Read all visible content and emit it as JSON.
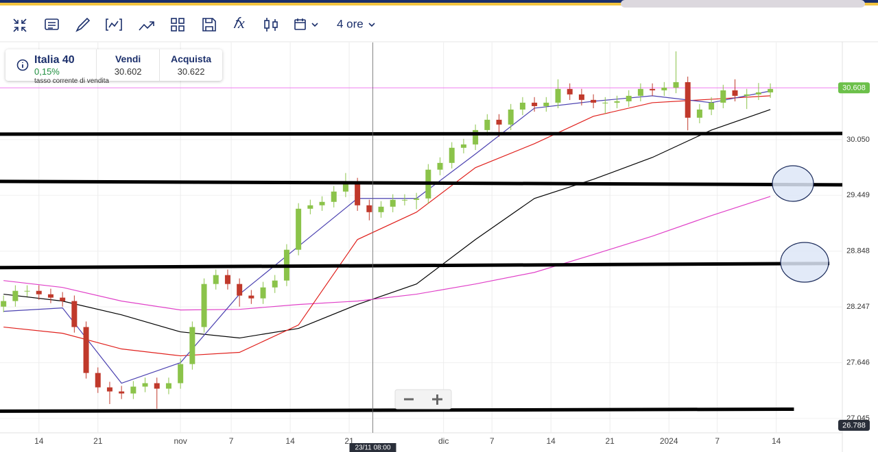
{
  "toolbar": {
    "timeframe": "4 ore"
  },
  "instrument": {
    "name": "Italia 40",
    "change": "0,15%",
    "sell_label": "Vendi",
    "sell": "30.602",
    "buy_label": "Acquista",
    "buy": "30.622",
    "tooltip": "tasso corrente di vendita"
  },
  "chart_data": {
    "type": "candlestick",
    "xlim": [
      -3.3,
      68.1
    ],
    "ylim": [
      26890,
      31097
    ],
    "xticks": [
      {
        "value": 0,
        "label": "14"
      },
      {
        "value": 5,
        "label": "21"
      },
      {
        "value": 12,
        "label": "nov"
      },
      {
        "value": 16.3,
        "label": "7"
      },
      {
        "value": 21.3,
        "label": "14"
      },
      {
        "value": 26.3,
        "label": "21"
      },
      {
        "value": 34.3,
        "label": "dic"
      },
      {
        "value": 38.4,
        "label": "7"
      },
      {
        "value": 43.4,
        "label": "14"
      },
      {
        "value": 48.4,
        "label": "21"
      },
      {
        "value": 53.4,
        "label": "2024"
      },
      {
        "value": 57.5,
        "label": "7"
      },
      {
        "value": 62.5,
        "label": "14"
      }
    ],
    "yticks": [
      {
        "value": 30050,
        "label": "30.050"
      },
      {
        "value": 29449,
        "label": "29.449"
      },
      {
        "value": 28848,
        "label": "28.848"
      },
      {
        "value": 28247,
        "label": "28.247"
      },
      {
        "value": 27646,
        "label": "27.646"
      },
      {
        "value": 27045,
        "label": "27.045"
      }
    ],
    "up_color": "#8bc34a",
    "down_color": "#c0392b",
    "x": [
      -3,
      -2,
      -1,
      0,
      1,
      2,
      3,
      4,
      5,
      6,
      7,
      8,
      9,
      10,
      11,
      12,
      13,
      14,
      15,
      16,
      17,
      18,
      19,
      20,
      21,
      22,
      23,
      24,
      25,
      26,
      27,
      28,
      29,
      30,
      31,
      32,
      33,
      34,
      35,
      36,
      37,
      38,
      39,
      40,
      41,
      42,
      43,
      44,
      45,
      46,
      47,
      48,
      49,
      50,
      51,
      52,
      53,
      54,
      55,
      56,
      57,
      58,
      59,
      60,
      61,
      62
    ],
    "opens": [
      28250,
      28310,
      28420,
      28420,
      28383,
      28347,
      28310,
      28030,
      27535,
      27380,
      27336,
      27314,
      27388,
      27425,
      27366,
      27425,
      27631,
      28030,
      28494,
      28590,
      28494,
      28369,
      28339,
      28457,
      28531,
      28863,
      29305,
      29342,
      29379,
      29490,
      29578,
      29342,
      29268,
      29327,
      29401,
      29401,
      29416,
      29726,
      29799,
      29962,
      29998,
      30153,
      30264,
      30212,
      30374,
      30448,
      30411,
      30448,
      30596,
      30537,
      30478,
      30448,
      30448,
      30463,
      30522,
      30596,
      30581,
      30610,
      30669,
      30286,
      30374,
      30448,
      30581,
      30522,
      30537,
      30559
    ],
    "highs": [
      28370,
      28480,
      28480,
      28480,
      28443,
      28407,
      28370,
      28090,
      27595,
      27440,
      27396,
      27448,
      27485,
      27485,
      27485,
      27691,
      28090,
      28554,
      28650,
      28650,
      28554,
      28429,
      28517,
      28591,
      28923,
      29365,
      29402,
      29439,
      29550,
      29690,
      29638,
      29402,
      29387,
      29461,
      29461,
      29476,
      29786,
      29859,
      30022,
      30058,
      30213,
      30324,
      30324,
      30434,
      30508,
      30508,
      30508,
      30700,
      30656,
      30597,
      30538,
      30508,
      30523,
      30582,
      30656,
      30656,
      30670,
      31001,
      30729,
      30434,
      30508,
      30641,
      30700,
      30597,
      30660,
      30656
    ],
    "lows": [
      28190,
      28250,
      28360,
      28323,
      28287,
      28250,
      27970,
      27475,
      27320,
      27200,
      27254,
      27254,
      27328,
      27150,
      27306,
      27365,
      27571,
      27970,
      28434,
      28434,
      28250,
      28279,
      28279,
      28397,
      28471,
      28803,
      29245,
      29282,
      29319,
      29430,
      29282,
      29180,
      29208,
      29267,
      29341,
      29300,
      29356,
      29666,
      29739,
      29902,
      29938,
      30093,
      30080,
      30152,
      30314,
      30351,
      30351,
      30388,
      30477,
      30418,
      30388,
      30330,
      30388,
      30403,
      30462,
      30521,
      30521,
      30550,
      30150,
      30226,
      30314,
      30388,
      30462,
      30380,
      30477,
      30499
    ],
    "closes": [
      28310,
      28420,
      28420,
      28383,
      28347,
      28310,
      28030,
      27535,
      27380,
      27336,
      27314,
      27388,
      27425,
      27366,
      27425,
      27631,
      28030,
      28494,
      28590,
      28494,
      28369,
      28339,
      28457,
      28531,
      28863,
      29305,
      29342,
      29379,
      29490,
      29578,
      29342,
      29268,
      29327,
      29401,
      29401,
      29416,
      29726,
      29799,
      29962,
      29998,
      30153,
      30264,
      30212,
      30374,
      30448,
      30411,
      30448,
      30596,
      30537,
      30478,
      30448,
      30448,
      30463,
      30522,
      30596,
      30581,
      30610,
      30669,
      30286,
      30374,
      30448,
      30581,
      30522,
      30537,
      30559,
      30596
    ],
    "ma_x": [
      -3,
      2,
      7,
      12,
      17,
      22,
      27,
      32,
      37,
      42,
      47,
      52,
      57,
      62
    ],
    "moving_averages": [
      {
        "color": "#000000",
        "values": [
          28384,
          28310,
          28162,
          27978,
          27912,
          28015,
          28273,
          28494,
          28973,
          29416,
          29622,
          29858,
          30153,
          30374
        ]
      },
      {
        "color": "#e040c8",
        "values": [
          28531,
          28457,
          28310,
          28214,
          28221,
          28273,
          28310,
          28384,
          28494,
          28619,
          28811,
          29010,
          29231,
          29438
        ]
      },
      {
        "color": "#e0201c",
        "values": [
          28030,
          27963,
          27794,
          27720,
          27757,
          28052,
          28973,
          29268,
          29748,
          30006,
          30301,
          30448,
          30485,
          30522
        ]
      },
      {
        "color": "#4a40b0",
        "values": [
          28199,
          28236,
          27425,
          27646,
          28384,
          28900,
          29416,
          29416,
          29895,
          30389,
          30463,
          30522,
          30448,
          30574
        ]
      }
    ],
    "trendlines": [
      {
        "x": [
          -3.3,
          68.1
        ],
        "y": [
          30109,
          30116
        ]
      },
      {
        "x": [
          -3.3,
          68.1
        ],
        "y": [
          29600,
          29563
        ]
      },
      {
        "x": [
          -3.3,
          67
        ],
        "y": [
          28671,
          28715
        ]
      },
      {
        "x": [
          -3.3,
          64
        ],
        "y": [
          27123,
          27145
        ]
      }
    ],
    "current_price": {
      "value": 30608,
      "label": "30.608"
    },
    "low_label": "26.788",
    "crosshair": {
      "x": 28.3,
      "label": "23/11 08:00"
    }
  }
}
